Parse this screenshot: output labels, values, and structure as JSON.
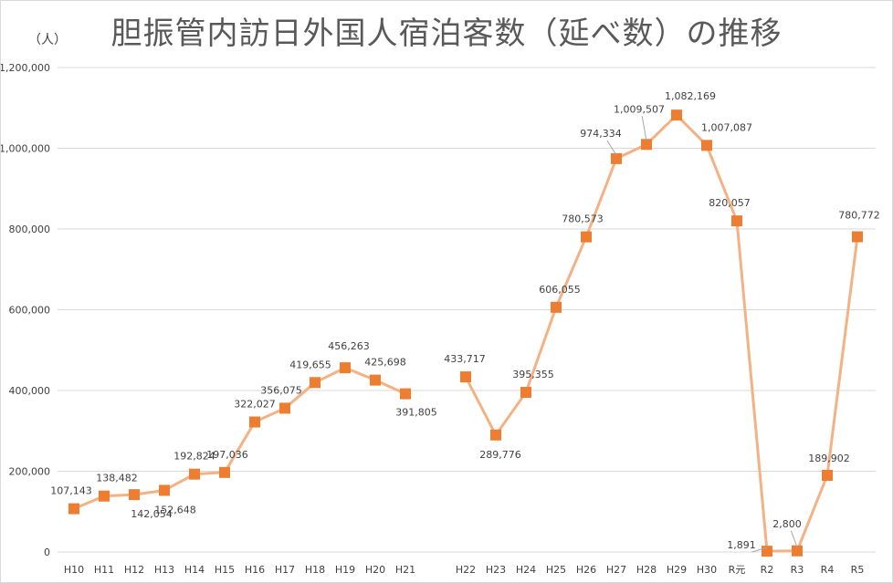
{
  "chart_data": {
    "type": "line",
    "title": "胆振管内訪日外国人宿泊客数（延べ数）の推移",
    "ylabel": "（人）",
    "xlabel": "",
    "ylim": [
      0,
      1200000
    ],
    "yticks": [
      0,
      200000,
      400000,
      600000,
      800000,
      1000000,
      1200000
    ],
    "ytick_labels": [
      "0",
      "200,000",
      "400,000",
      "600,000",
      "800,000",
      "1,000,000",
      "1,200,000"
    ],
    "grid": true,
    "legend": "none",
    "categories": [
      "H10",
      "H11",
      "H12",
      "H13",
      "H14",
      "H15",
      "H16",
      "H17",
      "H18",
      "H19",
      "H20",
      "H21",
      "",
      "H22",
      "H23",
      "H24",
      "H25",
      "H26",
      "H27",
      "H28",
      "H29",
      "H30",
      "R元",
      "R2",
      "R3",
      "R4",
      "R5"
    ],
    "series": [
      {
        "color": "#ed7d31",
        "line_color": "#f4b183",
        "values": [
          107143,
          138482,
          142054,
          152648,
          192824,
          197036,
          322027,
          356075,
          419655,
          456263,
          425698,
          391805,
          null,
          433717,
          289776,
          395355,
          606055,
          780573,
          974334,
          1009507,
          1082169,
          1007087,
          820057,
          1891,
          2800,
          189902,
          780772
        ],
        "labels": [
          "107,143",
          "138,482",
          "142,054",
          "152,648",
          "192,824",
          "197,036",
          "322,027",
          "356,075",
          "419,655",
          "456,263",
          "425,698",
          "391,805",
          "",
          "433,717",
          "289,776",
          "395,355",
          "606,055",
          "780,573",
          "974,334",
          "1,009,507",
          "1,082,169",
          "1,007,087",
          "820,057",
          "1,891",
          "2,800",
          "189,902",
          "780,772"
        ]
      }
    ]
  }
}
